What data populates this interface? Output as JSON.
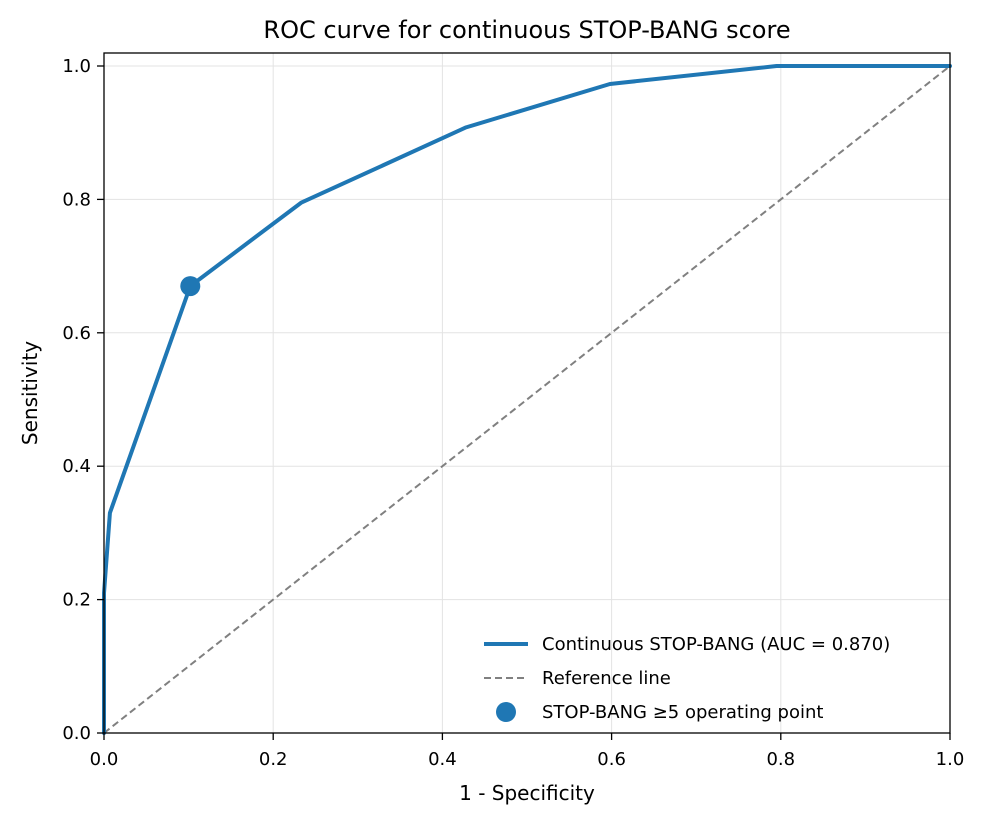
{
  "chart_data": {
    "type": "line",
    "title": "ROC curve for continuous STOP-BANG score",
    "xlabel": "1 - Specificity",
    "ylabel": "Sensitivity",
    "xlim": [
      0.0,
      1.0
    ],
    "ylim": [
      0.0,
      1.0
    ],
    "xticks": [
      "0.0",
      "0.2",
      "0.4",
      "0.6",
      "0.8",
      "1.0"
    ],
    "yticks": [
      "0.0",
      "0.2",
      "0.4",
      "0.6",
      "0.8",
      "1.0"
    ],
    "grid": true,
    "legend_position": "lower-right",
    "series": [
      {
        "name": "Continuous STOP-BANG (AUC = 0.870)",
        "kind": "line",
        "color": "#1f77b4",
        "x": [
          0.0,
          0.0,
          0.007,
          0.102,
          0.233,
          0.428,
          0.598,
          0.795,
          1.0
        ],
        "y": [
          0.0,
          0.21,
          0.33,
          0.67,
          0.795,
          0.908,
          0.973,
          1.0,
          1.0
        ]
      },
      {
        "name": "Reference line",
        "kind": "dashed",
        "color": "#808080",
        "x": [
          0.0,
          1.0
        ],
        "y": [
          0.0,
          1.0
        ]
      },
      {
        "name": "STOP-BANG ≥5 operating point",
        "kind": "point",
        "color": "#1f77b4",
        "x": [
          0.102
        ],
        "y": [
          0.67
        ]
      }
    ]
  }
}
